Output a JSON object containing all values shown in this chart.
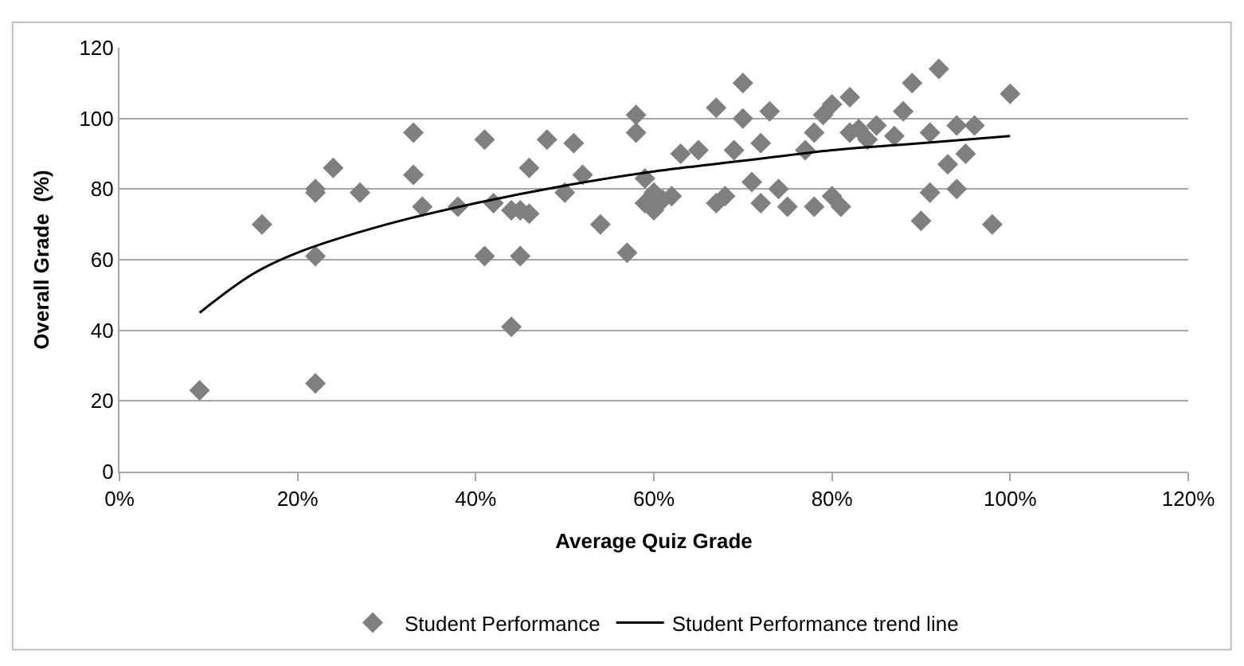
{
  "chart_data": {
    "type": "scatter",
    "xlabel": "Average Quiz Grade",
    "ylabel": "Overall Grade  (%)",
    "xlim": [
      0,
      120
    ],
    "xticks": [
      {
        "value": 0,
        "label": "0%"
      },
      {
        "value": 20,
        "label": "20%"
      },
      {
        "value": 40,
        "label": "40%"
      },
      {
        "value": 60,
        "label": "60%"
      },
      {
        "value": 80,
        "label": "80%"
      },
      {
        "value": 100,
        "label": "100%"
      },
      {
        "value": 120,
        "label": "120%"
      }
    ],
    "ylim": [
      0,
      120
    ],
    "yticks": [
      0,
      20,
      40,
      60,
      80,
      100,
      120
    ],
    "grid": "y",
    "legend": "bottom",
    "series": [
      {
        "name": "Student Performance",
        "marker": "diamond",
        "color": "#7f7f7f",
        "x": [
          9,
          16,
          22,
          22,
          22,
          22,
          24,
          27,
          33,
          33,
          34,
          38,
          41,
          41,
          42,
          44,
          44,
          45,
          45,
          46,
          46,
          48,
          50,
          51,
          52,
          54,
          57,
          58,
          58,
          59,
          59,
          60,
          60,
          61,
          62,
          63,
          65,
          67,
          67,
          68,
          69,
          70,
          70,
          71,
          72,
          72,
          73,
          74,
          75,
          77,
          78,
          78,
          79,
          80,
          80,
          81,
          82,
          82,
          83,
          84,
          85,
          87,
          88,
          89,
          90,
          91,
          91,
          92,
          93,
          94,
          94,
          95,
          96,
          98,
          100
        ],
        "values": [
          23,
          70,
          80,
          79,
          61,
          25,
          86,
          79,
          96,
          84,
          75,
          75,
          94,
          61,
          76,
          41,
          74,
          61,
          74,
          86,
          73,
          94,
          79,
          93,
          84,
          70,
          62,
          96,
          101,
          83,
          76,
          74,
          79,
          77,
          78,
          90,
          91,
          103,
          76,
          78,
          91,
          110,
          100,
          82,
          76,
          93,
          102,
          80,
          75,
          91,
          96,
          75,
          101,
          104,
          78,
          75,
          106,
          96,
          97,
          94,
          98,
          95,
          102,
          110,
          71,
          79,
          96,
          114,
          87,
          98,
          80,
          90,
          98,
          70,
          107
        ]
      },
      {
        "name": "Student Performance trend line",
        "type": "line",
        "marker": "none",
        "line_style": "solid",
        "color": "#000000",
        "x": [
          9,
          15,
          20,
          30,
          40,
          50,
          60,
          70,
          80,
          90,
          100
        ],
        "values": [
          45,
          56,
          62,
          70,
          76,
          81,
          85,
          88,
          91,
          93,
          95
        ]
      }
    ]
  }
}
